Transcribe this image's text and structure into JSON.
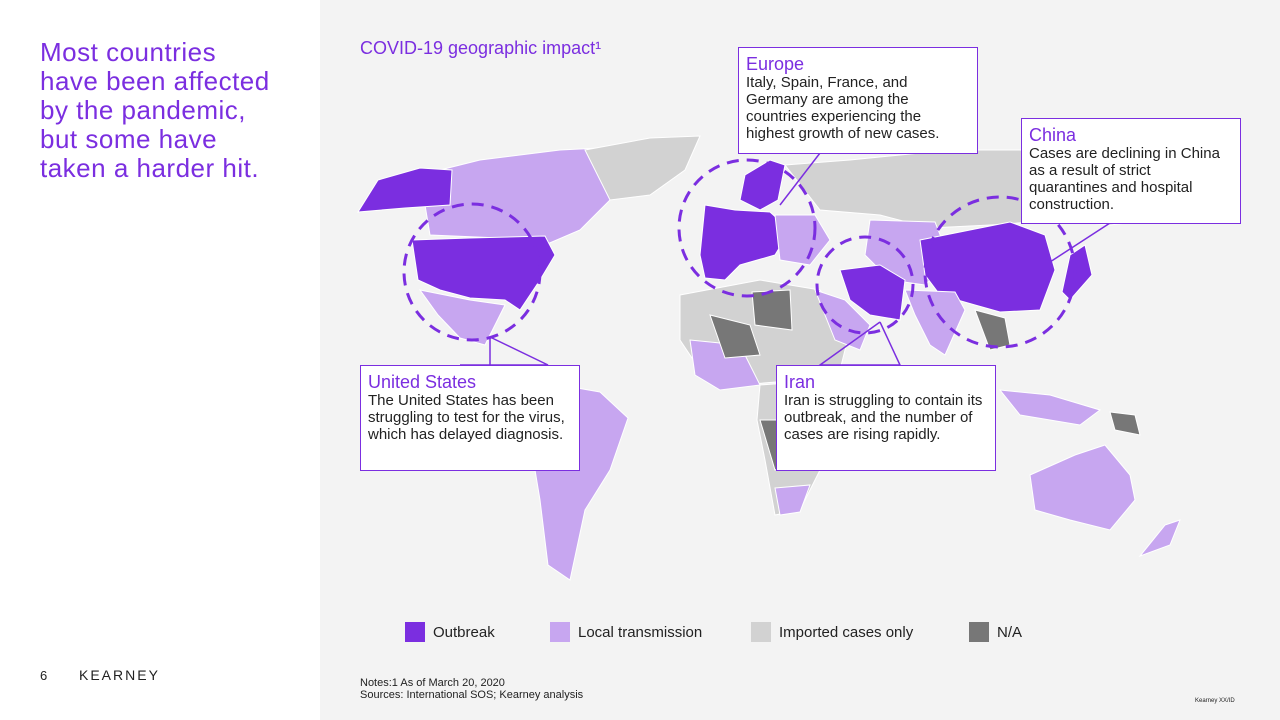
{
  "headline": [
    "Most countries",
    "have been affected",
    "by the pandemic,",
    "but some have",
    "taken a harder hit."
  ],
  "page_number": "6",
  "brand": "KEARNEY",
  "map": {
    "title": "COVID-19 geographic impact¹",
    "callouts": [
      {
        "title": "Europe",
        "text": "Italy, Spain, France, and Germany are among the countries experiencing the highest growth of new cases."
      },
      {
        "title": "China",
        "text": "Cases are declining in China as a result of strict quarantines and hospital construction."
      },
      {
        "title": "United States",
        "text": "The United States has been struggling to test for the virus, which has delayed diagnosis."
      },
      {
        "title": "Iran",
        "text": "Iran is struggling to contain its outbreak, and the number of cases are rising rapidly."
      }
    ],
    "legend": [
      {
        "label": "Outbreak",
        "color": "#7b2ee0"
      },
      {
        "label": "Local transmission",
        "color": "#c7a6f0"
      },
      {
        "label": "Imported cases only",
        "color": "#d2d2d2"
      },
      {
        "label": "N/A",
        "color": "#777777"
      }
    ]
  },
  "notes": "Notes:1 As of March 20, 2020",
  "sources": "Sources: International SOS; Kearney analysis",
  "footer_id": "Kearney XX/ID"
}
